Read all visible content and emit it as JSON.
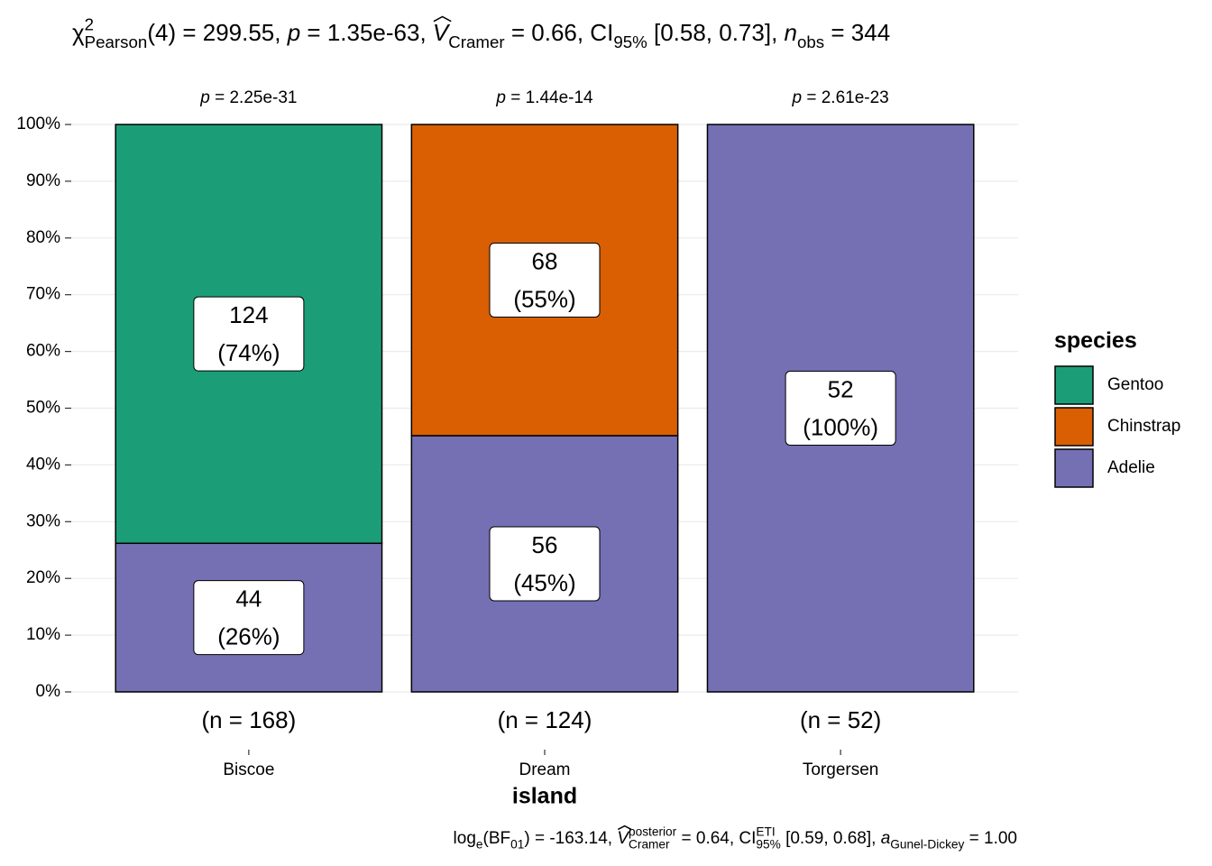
{
  "chart_data": {
    "type": "stacked_percent_bar",
    "title": [
      {
        "text": "χ",
        "kind": "n"
      },
      {
        "text": "2",
        "kind": "sup"
      },
      {
        "text": "Pearson",
        "kind": "sub"
      },
      {
        "text": "(4) = 299.55, ",
        "kind": "n"
      },
      {
        "text": "p",
        "kind": "i"
      },
      {
        "text": " = 1.35e-63, ",
        "kind": "n"
      },
      {
        "text": "V",
        "kind": "hat"
      },
      {
        "text": "Cramer",
        "kind": "sub"
      },
      {
        "text": " = 0.66, CI",
        "kind": "n"
      },
      {
        "text": "95%",
        "kind": "sub"
      },
      {
        "text": " [0.58, 0.73], ",
        "kind": "n"
      },
      {
        "text": "n",
        "kind": "i"
      },
      {
        "text": "obs",
        "kind": "sub"
      },
      {
        "text": " = 344",
        "kind": "n"
      }
    ],
    "caption": [
      {
        "text": "log",
        "kind": "n"
      },
      {
        "text": "e",
        "kind": "sub"
      },
      {
        "text": "(BF",
        "kind": "n"
      },
      {
        "text": "01",
        "kind": "sub"
      },
      {
        "text": ") = -163.14, ",
        "kind": "n"
      },
      {
        "text": "V",
        "kind": "hat"
      },
      {
        "text": "posterior",
        "kind": "sup"
      },
      {
        "text": "Cramer",
        "kind": "sub"
      },
      {
        "text": " = 0.64, CI",
        "kind": "n"
      },
      {
        "text": "ETI",
        "kind": "sup"
      },
      {
        "text": "95%",
        "kind": "sub"
      },
      {
        "text": " [0.59, 0.68], ",
        "kind": "n"
      },
      {
        "text": "a",
        "kind": "i"
      },
      {
        "text": "Gunel-Dickey",
        "kind": "sub"
      },
      {
        "text": " = 1.00",
        "kind": "n"
      }
    ],
    "x_label": "island",
    "categories": [
      "Biscoe",
      "Dream",
      "Torgersen"
    ],
    "sample_sizes": [
      "(n = 168)",
      "(n = 124)",
      "(n = 52)"
    ],
    "p_labels": [
      [
        {
          "text": "p",
          "kind": "i"
        },
        {
          "text": " = 2.25e-31",
          "kind": "n"
        }
      ],
      [
        {
          "text": "p",
          "kind": "i"
        },
        {
          "text": " = 1.44e-14",
          "kind": "n"
        }
      ],
      [
        {
          "text": "p",
          "kind": "i"
        },
        {
          "text": " = 2.61e-23",
          "kind": "n"
        }
      ]
    ],
    "legend_title": "species",
    "legend_position": "right",
    "series": [
      {
        "name": "Gentoo",
        "color": "#1b9e77",
        "values": [
          73.81,
          null,
          null
        ],
        "value_labels": [
          [
            "124",
            "(74%)"
          ],
          null,
          null
        ]
      },
      {
        "name": "Chinstrap",
        "color": "#d95f02",
        "values": [
          null,
          54.84,
          null
        ],
        "value_labels": [
          null,
          [
            "68",
            "(55%)"
          ],
          null
        ]
      },
      {
        "name": "Adelie",
        "color": "#7570b3",
        "values": [
          26.19,
          45.16,
          100
        ],
        "value_labels": [
          [
            "44",
            "(26%)"
          ],
          [
            "56",
            "(45%)"
          ],
          [
            "52",
            "(100%)"
          ]
        ]
      }
    ],
    "ylim": [
      0,
      100
    ],
    "yticks": [
      {
        "value": 0,
        "label": "0%"
      },
      {
        "value": 10,
        "label": "10%"
      },
      {
        "value": 20,
        "label": "20%"
      },
      {
        "value": 30,
        "label": "30%"
      },
      {
        "value": 40,
        "label": "40%"
      },
      {
        "value": 50,
        "label": "50%"
      },
      {
        "value": 60,
        "label": "60%"
      },
      {
        "value": 70,
        "label": "70%"
      },
      {
        "value": 80,
        "label": "80%"
      },
      {
        "value": 90,
        "label": "90%"
      },
      {
        "value": 100,
        "label": "100%"
      }
    ],
    "grid": true
  }
}
